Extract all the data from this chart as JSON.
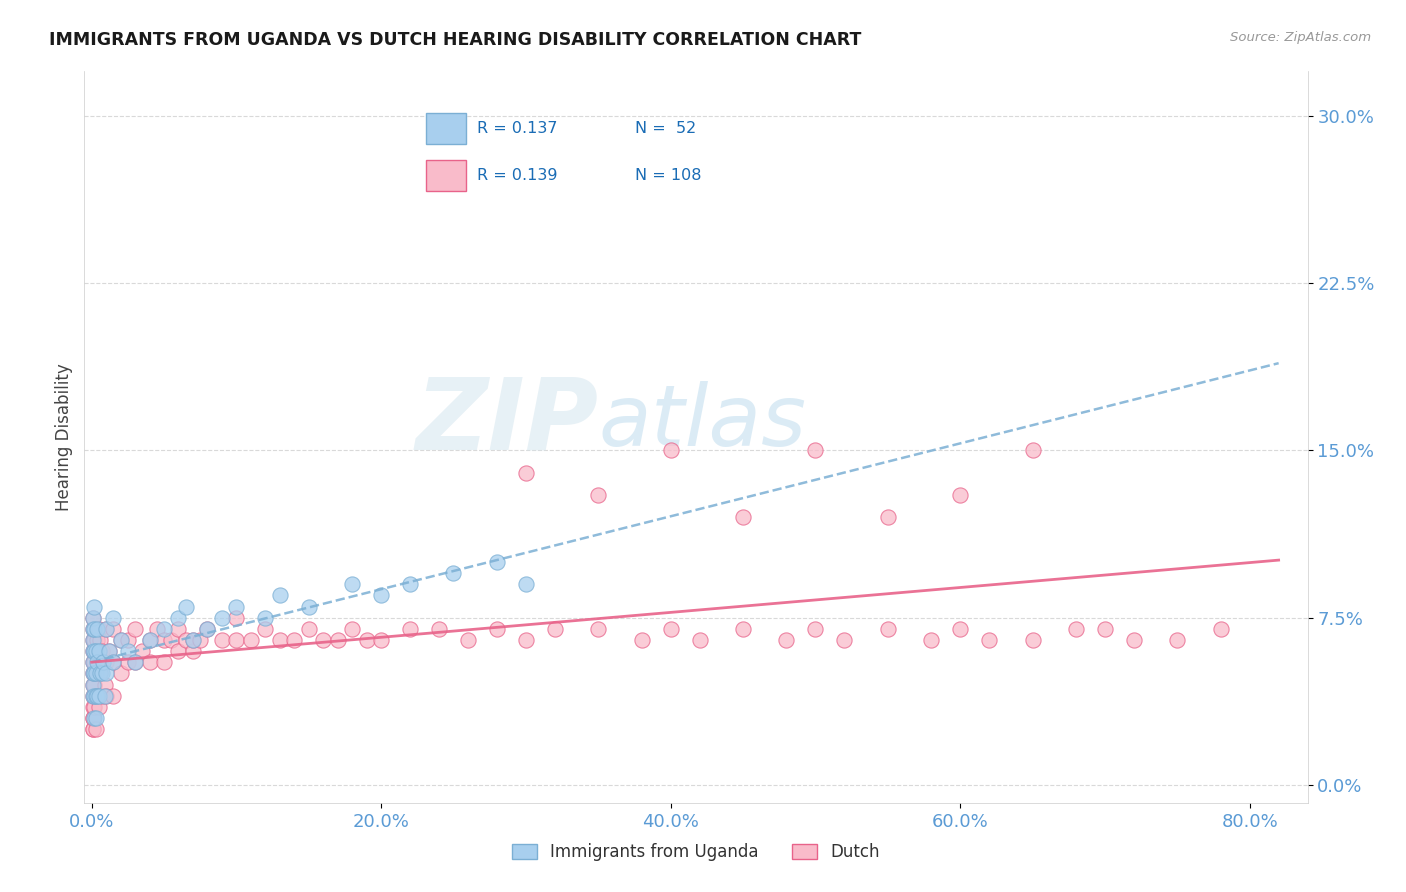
{
  "title": "IMMIGRANTS FROM UGANDA VS DUTCH HEARING DISABILITY CORRELATION CHART",
  "source": "Source: ZipAtlas.com",
  "ylabel": "Hearing Disability",
  "xlabel_ticks": [
    "0.0%",
    "20.0%",
    "40.0%",
    "60.0%",
    "80.0%"
  ],
  "xlabel_vals": [
    0.0,
    0.2,
    0.4,
    0.6,
    0.8
  ],
  "ylabel_ticks": [
    "0.0%",
    "7.5%",
    "15.0%",
    "22.5%",
    "30.0%"
  ],
  "ylabel_vals": [
    0.0,
    0.075,
    0.15,
    0.225,
    0.3
  ],
  "xlim": [
    -0.005,
    0.84
  ],
  "ylim": [
    -0.008,
    0.32
  ],
  "legend_label1": "Immigrants from Uganda",
  "legend_label2": "Dutch",
  "R1": 0.137,
  "N1": 52,
  "R2": 0.139,
  "N2": 108,
  "color1": "#A8CFEE",
  "color2": "#F9BBCA",
  "trendline1_color": "#7BAFD4",
  "trendline2_color": "#E8638A",
  "grid_color": "#D0D0D0",
  "title_color": "#1a1a1a",
  "axis_label_color": "#5B9BD5",
  "background_color": "#FFFFFF",
  "uganda_x": [
    0.001,
    0.001,
    0.001,
    0.001,
    0.001,
    0.001,
    0.001,
    0.001,
    0.002,
    0.002,
    0.002,
    0.002,
    0.002,
    0.002,
    0.003,
    0.003,
    0.003,
    0.003,
    0.004,
    0.004,
    0.004,
    0.005,
    0.005,
    0.006,
    0.007,
    0.008,
    0.009,
    0.01,
    0.01,
    0.012,
    0.015,
    0.015,
    0.02,
    0.025,
    0.03,
    0.04,
    0.05,
    0.06,
    0.065,
    0.07,
    0.08,
    0.09,
    0.1,
    0.12,
    0.13,
    0.15,
    0.18,
    0.2,
    0.22,
    0.25,
    0.28,
    0.3
  ],
  "uganda_y": [
    0.04,
    0.045,
    0.05,
    0.055,
    0.06,
    0.065,
    0.07,
    0.075,
    0.03,
    0.04,
    0.05,
    0.06,
    0.07,
    0.08,
    0.03,
    0.04,
    0.05,
    0.06,
    0.04,
    0.055,
    0.07,
    0.04,
    0.06,
    0.05,
    0.05,
    0.055,
    0.04,
    0.05,
    0.07,
    0.06,
    0.055,
    0.075,
    0.065,
    0.06,
    0.055,
    0.065,
    0.07,
    0.075,
    0.08,
    0.065,
    0.07,
    0.075,
    0.08,
    0.075,
    0.085,
    0.08,
    0.09,
    0.085,
    0.09,
    0.095,
    0.1,
    0.09
  ],
  "dutch_x": [
    0.001,
    0.001,
    0.001,
    0.001,
    0.001,
    0.001,
    0.001,
    0.001,
    0.001,
    0.001,
    0.001,
    0.001,
    0.001,
    0.002,
    0.002,
    0.002,
    0.002,
    0.002,
    0.002,
    0.002,
    0.003,
    0.003,
    0.003,
    0.003,
    0.004,
    0.004,
    0.004,
    0.005,
    0.005,
    0.005,
    0.006,
    0.006,
    0.007,
    0.007,
    0.008,
    0.009,
    0.01,
    0.01,
    0.01,
    0.012,
    0.015,
    0.015,
    0.015,
    0.02,
    0.02,
    0.025,
    0.025,
    0.03,
    0.03,
    0.035,
    0.04,
    0.04,
    0.045,
    0.05,
    0.05,
    0.055,
    0.06,
    0.06,
    0.065,
    0.07,
    0.07,
    0.075,
    0.08,
    0.09,
    0.1,
    0.1,
    0.11,
    0.12,
    0.13,
    0.14,
    0.15,
    0.16,
    0.17,
    0.18,
    0.19,
    0.2,
    0.22,
    0.24,
    0.26,
    0.28,
    0.3,
    0.32,
    0.35,
    0.38,
    0.4,
    0.42,
    0.45,
    0.48,
    0.5,
    0.52,
    0.55,
    0.58,
    0.6,
    0.62,
    0.65,
    0.68,
    0.7,
    0.72,
    0.75,
    0.78,
    0.3,
    0.35,
    0.4,
    0.45,
    0.5,
    0.55,
    0.6,
    0.65
  ],
  "dutch_y": [
    0.04,
    0.045,
    0.05,
    0.055,
    0.06,
    0.065,
    0.07,
    0.075,
    0.025,
    0.03,
    0.035,
    0.025,
    0.03,
    0.035,
    0.04,
    0.045,
    0.05,
    0.055,
    0.06,
    0.065,
    0.025,
    0.04,
    0.05,
    0.06,
    0.04,
    0.05,
    0.065,
    0.035,
    0.05,
    0.07,
    0.05,
    0.065,
    0.04,
    0.06,
    0.055,
    0.045,
    0.04,
    0.055,
    0.07,
    0.06,
    0.04,
    0.055,
    0.07,
    0.05,
    0.065,
    0.055,
    0.065,
    0.055,
    0.07,
    0.06,
    0.055,
    0.065,
    0.07,
    0.055,
    0.065,
    0.065,
    0.06,
    0.07,
    0.065,
    0.06,
    0.065,
    0.065,
    0.07,
    0.065,
    0.065,
    0.075,
    0.065,
    0.07,
    0.065,
    0.065,
    0.07,
    0.065,
    0.065,
    0.07,
    0.065,
    0.065,
    0.07,
    0.07,
    0.065,
    0.07,
    0.065,
    0.07,
    0.07,
    0.065,
    0.07,
    0.065,
    0.07,
    0.065,
    0.07,
    0.065,
    0.07,
    0.065,
    0.07,
    0.065,
    0.065,
    0.07,
    0.07,
    0.065,
    0.065,
    0.07,
    0.14,
    0.13,
    0.15,
    0.12,
    0.15,
    0.12,
    0.13,
    0.15
  ]
}
